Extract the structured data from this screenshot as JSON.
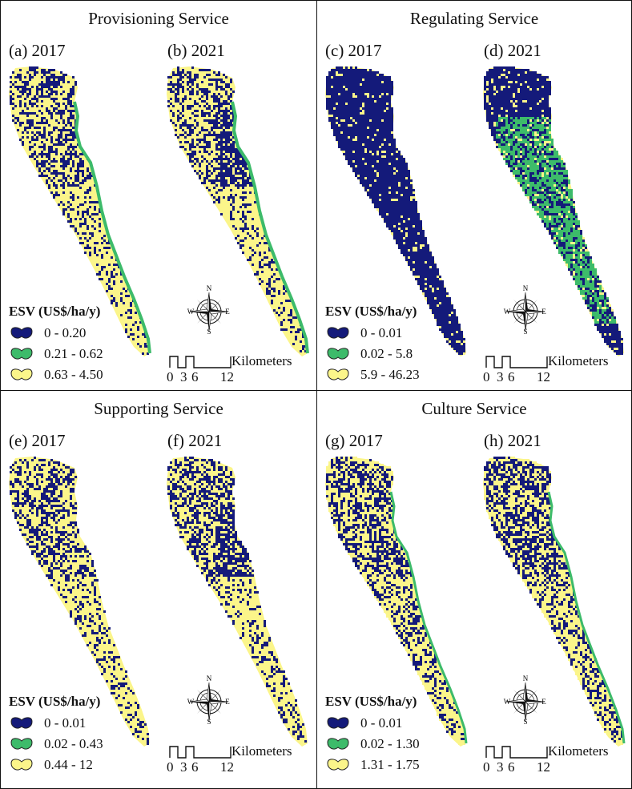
{
  "quadrants": [
    {
      "title": "Provisioning Service",
      "panels": [
        {
          "label": "(a) 2017"
        },
        {
          "label": "(b) 2021"
        }
      ],
      "legend_title": "ESV (US$/ha/y)",
      "legend": [
        {
          "range": "0 - 0.20",
          "color": "#141a7a"
        },
        {
          "range": "0.21 - 0.62",
          "color": "#3dbb6a"
        },
        {
          "range": "0.63 - 4.50",
          "color": "#fbf58a"
        }
      ]
    },
    {
      "title": "Regulating Service",
      "panels": [
        {
          "label": "(c) 2017"
        },
        {
          "label": "(d) 2021"
        }
      ],
      "legend_title": "ESV (US$/ha/y)",
      "legend": [
        {
          "range": "0 - 0.01",
          "color": "#141a7a"
        },
        {
          "range": "0.02 - 5.8",
          "color": "#3dbb6a"
        },
        {
          "range": "5.9 - 46.23",
          "color": "#fbf58a"
        }
      ]
    },
    {
      "title": "Supporting Service",
      "panels": [
        {
          "label": "(e) 2017"
        },
        {
          "label": "(f) 2021"
        }
      ],
      "legend_title": "ESV (US$/ha/y)",
      "legend": [
        {
          "range": "0 - 0.01",
          "color": "#141a7a"
        },
        {
          "range": "0.02 - 0.43",
          "color": "#3dbb6a"
        },
        {
          "range": "0.44 - 12",
          "color": "#fbf58a"
        }
      ]
    },
    {
      "title": "Culture Service",
      "panels": [
        {
          "label": "(g) 2017"
        },
        {
          "label": "(h) 2021"
        }
      ],
      "legend_title": "ESV (US$/ha/y)",
      "legend": [
        {
          "range": "0 - 0.01",
          "color": "#141a7a"
        },
        {
          "range": "0.02 - 1.30",
          "color": "#3dbb6a"
        },
        {
          "range": "1.31 - 1.75",
          "color": "#fbf58a"
        }
      ]
    }
  ],
  "compass": {
    "n": "N",
    "s": "S",
    "e": "E",
    "w": "W"
  },
  "scale": {
    "unit": "Kilometers",
    "ticks": [
      "0",
      "3",
      "6",
      "12"
    ]
  }
}
